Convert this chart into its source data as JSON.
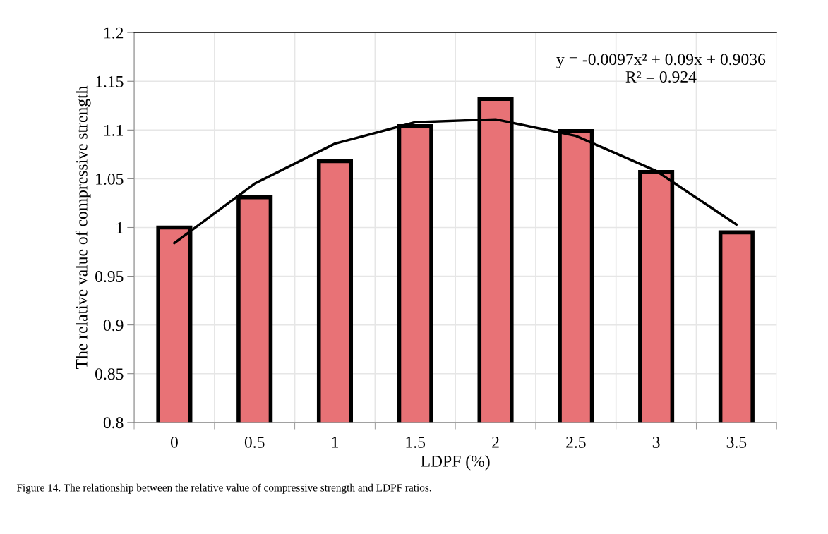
{
  "chart_data": {
    "type": "bar",
    "xlabel": "LDPF (%)",
    "ylabel": "The relative value of compressive strength",
    "categories": [
      "0",
      "0.5",
      "1",
      "1.5",
      "2",
      "2.5",
      "3",
      "3.5"
    ],
    "series": [
      {
        "color": "#e87276",
        "values": [
          1.0,
          1.031,
          1.068,
          1.104,
          1.132,
          1.099,
          1.057,
          0.995
        ]
      },
      {
        "type": "line",
        "color": "#000000",
        "values": [
          0.984,
          1.045,
          1.086,
          1.108,
          1.111,
          1.094,
          1.058,
          1.003
        ]
      }
    ],
    "ylim": [
      0.8,
      1.2
    ],
    "yticks": [
      0.8,
      {
        "value": 0.85,
        "label": "0.85"
      },
      {
        "value": 0.9,
        "label": "0.9"
      },
      {
        "value": 0.95,
        "label": "0.95"
      },
      1,
      {
        "value": 1.05,
        "label": "1.05"
      },
      {
        "value": 1.1,
        "label": "1.1"
      },
      {
        "value": 1.15,
        "label": "1.15"
      },
      {
        "value": 1.2,
        "label": "1.2"
      }
    ],
    "grid": true,
    "marker": "none",
    "line_style": "solid",
    "annotations": [
      "y = -0.0097x² + 0.09x + 0.9036\nR² = 0.924",
      "Figure 14. The relationship between the relative value of compressive strength and LDPF ratios."
    ]
  }
}
